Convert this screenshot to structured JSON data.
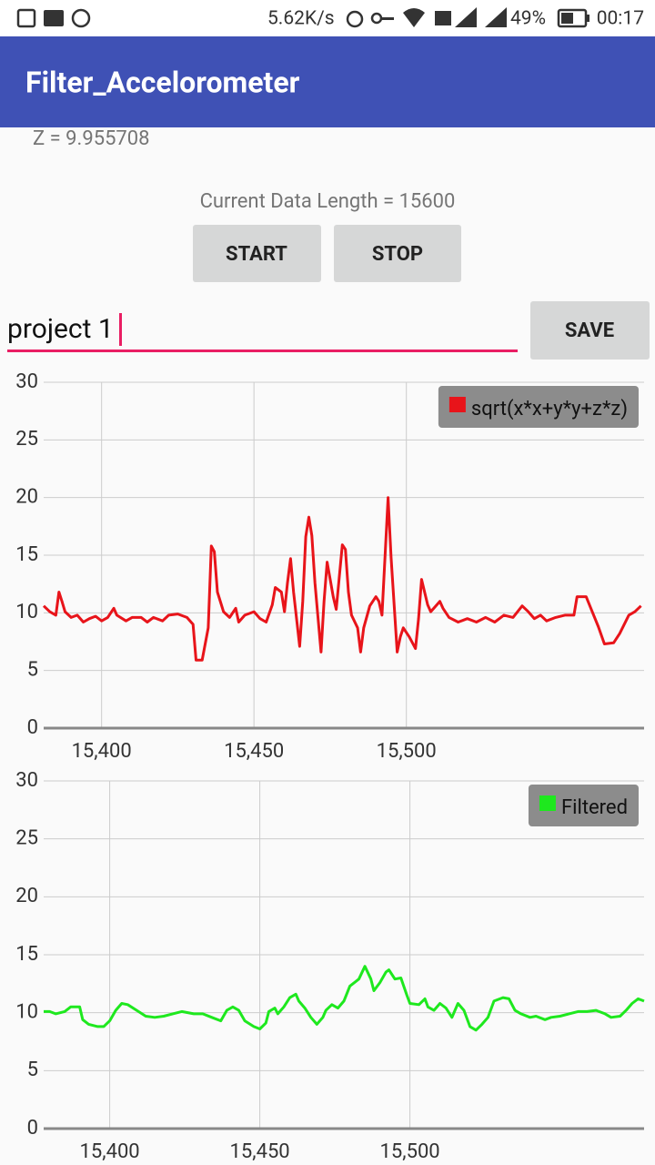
{
  "status_bar": {
    "speed": "5.62K/s",
    "battery": "49%",
    "time": "00:17"
  },
  "app_bar": {
    "title": "Filter_Accelorometer"
  },
  "z_label": "Z = 9.955708",
  "data_length": "Current Data Length = 15600",
  "buttons": {
    "start": "START",
    "stop": "STOP",
    "save": "SAVE"
  },
  "input": {
    "value": "project 1"
  },
  "chart_data": [
    {
      "type": "line",
      "xlim": [
        15381,
        15578
      ],
      "ylim": [
        0,
        30
      ],
      "xticks": [
        {
          "value": 15400,
          "label": "15,400"
        },
        {
          "value": 15450,
          "label": "15,450"
        },
        {
          "value": 15500,
          "label": "15,500"
        }
      ],
      "yticks": [
        0,
        5,
        10,
        15,
        20,
        25,
        30
      ],
      "grid": true,
      "legend": "top-right",
      "x": [
        15381,
        15383,
        15385,
        15386,
        15387,
        15388,
        15390,
        15392,
        15394,
        15396,
        15398,
        15400,
        15402,
        15404,
        15405,
        15408,
        15410,
        15413,
        15415,
        15417,
        15420,
        15422,
        15425,
        15428,
        15430,
        15431,
        15433,
        15435,
        15436,
        15437,
        15438,
        15440,
        15442,
        15444,
        15445,
        15447,
        15450,
        15452,
        15454,
        15456,
        15457,
        15459,
        15460,
        15461,
        15462,
        15463,
        15465,
        15466,
        15467,
        15468,
        15469,
        15470,
        15472,
        15473,
        15474,
        15476,
        15477,
        15479,
        15480,
        15481,
        15482,
        15484,
        15485,
        15486,
        15488,
        15490,
        15491,
        15492,
        15494,
        15495,
        15497,
        15498,
        15499,
        15501,
        15503,
        15504,
        15505,
        15507,
        15508,
        15511,
        15512,
        15514,
        15517,
        15520,
        15523,
        15526,
        15529,
        15532,
        15535,
        15538,
        15540,
        15542,
        15544,
        15546,
        15549,
        15552,
        15555,
        15556,
        15559,
        15561,
        15563,
        15565,
        15568,
        15570,
        15573,
        15575,
        15577
      ],
      "series": [
        {
          "name": "sqrt(x*x+y*y+z*z)",
          "color": "#e8141a",
          "values": [
            10.6,
            10.1,
            9.8,
            11.8,
            11.0,
            10.1,
            9.6,
            9.8,
            9.2,
            9.5,
            9.7,
            9.3,
            9.6,
            10.4,
            9.8,
            9.3,
            9.6,
            9.6,
            9.2,
            9.6,
            9.3,
            9.8,
            9.9,
            9.6,
            9.0,
            5.9,
            5.9,
            8.7,
            15.8,
            15.3,
            11.8,
            10.1,
            9.6,
            10.4,
            9.2,
            9.8,
            10.1,
            9.5,
            9.2,
            10.7,
            12.2,
            11.8,
            10.1,
            12.6,
            14.7,
            11.8,
            7.1,
            11.0,
            16.6,
            18.3,
            16.7,
            12.6,
            6.6,
            11.0,
            14.4,
            11.4,
            10.3,
            15.9,
            15.5,
            11.8,
            9.8,
            8.7,
            6.6,
            8.7,
            10.6,
            11.4,
            11.0,
            9.8,
            20.0,
            14.8,
            6.6,
            7.9,
            8.7,
            7.9,
            6.9,
            9.5,
            12.9,
            10.7,
            10.1,
            11.0,
            10.4,
            9.6,
            9.2,
            9.5,
            9.2,
            9.6,
            9.2,
            9.8,
            9.6,
            10.6,
            10.1,
            9.5,
            9.8,
            9.3,
            9.6,
            9.8,
            9.8,
            11.4,
            11.4,
            10.1,
            8.8,
            7.3,
            7.4,
            8.2,
            9.8,
            10.1,
            10.6
          ]
        }
      ]
    },
    {
      "type": "line",
      "xlim": [
        15378,
        15578
      ],
      "ylim": [
        0,
        30
      ],
      "xticks": [
        {
          "value": 15400,
          "label": "15,400"
        },
        {
          "value": 15450,
          "label": "15,450"
        },
        {
          "value": 15500,
          "label": "15,500"
        }
      ],
      "yticks": [
        0,
        5,
        10,
        15,
        20,
        25,
        30
      ],
      "grid": true,
      "legend": "top-right",
      "x": [
        15378,
        15380,
        15382,
        15385,
        15387,
        15390,
        15391,
        15393,
        15396,
        15398,
        15400,
        15402,
        15404,
        15406,
        15409,
        15412,
        15415,
        15418,
        15421,
        15424,
        15428,
        15431,
        15434,
        15437,
        15439,
        15441,
        15443,
        15445,
        15448,
        15450,
        15452,
        15453,
        15455,
        15456,
        15458,
        15460,
        15462,
        15463,
        15465,
        15467,
        15469,
        15471,
        15472,
        15474,
        15476,
        15478,
        15480,
        15482,
        15483,
        15485,
        15487,
        15488,
        15490,
        15492,
        15493,
        15495,
        15497,
        15499,
        15500,
        15503,
        15505,
        15506,
        15508,
        15510,
        15512,
        15514,
        15515,
        15516,
        15518,
        15520,
        15522,
        15524,
        15526,
        15528,
        15531,
        15533,
        15535,
        15537,
        15540,
        15542,
        15545,
        15547,
        15550,
        15553,
        15556,
        15559,
        15562,
        15565,
        15567,
        15570,
        15572,
        15574,
        15576,
        15578
      ],
      "series": [
        {
          "name": "Filtered",
          "color": "#1ee81e",
          "values": [
            10.1,
            10.1,
            9.9,
            10.1,
            10.5,
            10.5,
            9.4,
            9.0,
            8.8,
            8.8,
            9.3,
            10.2,
            10.8,
            10.7,
            10.2,
            9.7,
            9.6,
            9.7,
            9.9,
            10.1,
            9.9,
            9.9,
            9.6,
            9.3,
            10.2,
            10.5,
            10.2,
            9.3,
            8.8,
            8.6,
            9.1,
            10.1,
            10.4,
            9.9,
            10.5,
            11.3,
            11.6,
            11.0,
            10.4,
            9.6,
            9.0,
            9.6,
            10.2,
            10.7,
            10.4,
            11.0,
            12.3,
            12.7,
            12.9,
            14.0,
            12.9,
            11.9,
            12.6,
            13.5,
            13.7,
            12.9,
            13.0,
            11.5,
            10.8,
            10.7,
            11.2,
            10.5,
            10.2,
            10.8,
            10.4,
            9.6,
            10.2,
            10.8,
            10.2,
            8.8,
            8.5,
            9.0,
            9.6,
            11.0,
            11.3,
            11.2,
            10.2,
            9.9,
            9.6,
            9.7,
            9.4,
            9.6,
            9.7,
            9.9,
            10.1,
            10.1,
            10.2,
            9.9,
            9.6,
            9.7,
            10.2,
            10.8,
            11.2,
            11.0
          ]
        }
      ]
    }
  ]
}
